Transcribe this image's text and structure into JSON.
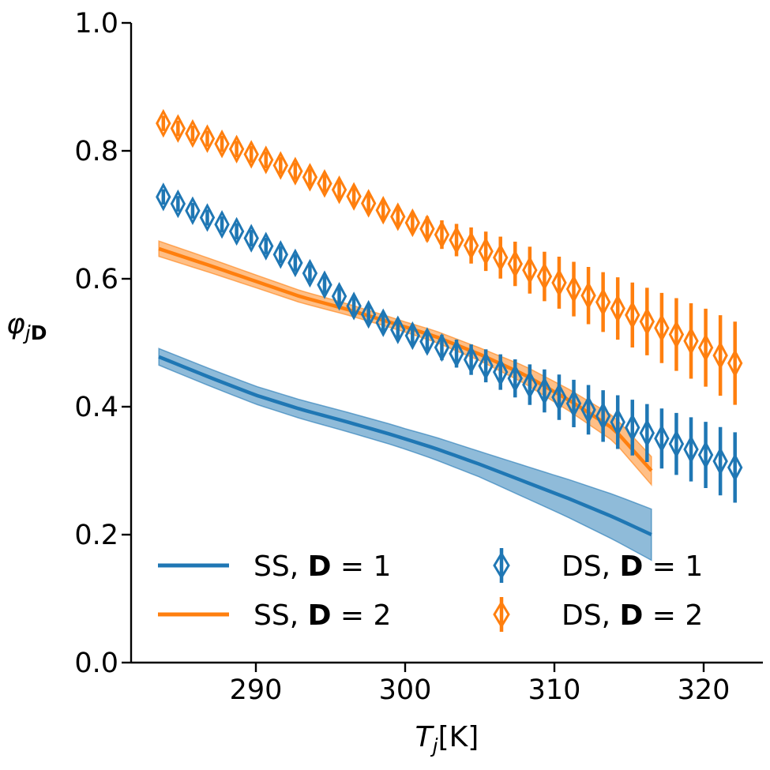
{
  "chart_data": {
    "type": "line",
    "xlabel": {
      "var": "T",
      "sub": "j",
      "unit": "[K]"
    },
    "ylabel": {
      "var": "φ",
      "sub_italic": "j",
      "sub_bold": "D"
    },
    "xlim": [
      281.9,
      324.4
    ],
    "ylim": [
      0.0,
      1.0
    ],
    "xticks": [
      290,
      300,
      310,
      320
    ],
    "xtick_labels": [
      "290",
      "300",
      "310",
      "320"
    ],
    "yticks": [
      0.0,
      0.2,
      0.4,
      0.6,
      0.8,
      1.0
    ],
    "ytick_labels": [
      "0.0",
      "0.2",
      "0.4",
      "0.6",
      "0.8",
      "1.0"
    ],
    "grid": false,
    "legend_position": "lower-left",
    "series": [
      {
        "name": "SS, D = 1",
        "kind": "line-band",
        "color": "#1f77b4",
        "points": [
          [
            283.5,
            0.478
          ],
          [
            287,
            0.445
          ],
          [
            290,
            0.418
          ],
          [
            293,
            0.396
          ],
          [
            296,
            0.377
          ],
          [
            299,
            0.357
          ],
          [
            302,
            0.335
          ],
          [
            305,
            0.31
          ],
          [
            308,
            0.283
          ],
          [
            311,
            0.256
          ],
          [
            314,
            0.227
          ],
          [
            316.5,
            0.2
          ]
        ],
        "band_half_width": [
          [
            283.5,
            0.013
          ],
          [
            290,
            0.014
          ],
          [
            300,
            0.016
          ],
          [
            305,
            0.02
          ],
          [
            310,
            0.028
          ],
          [
            316.5,
            0.04
          ]
        ]
      },
      {
        "name": "SS, D = 2",
        "kind": "line-band",
        "color": "#ff7f0e",
        "points": [
          [
            283.5,
            0.647
          ],
          [
            287,
            0.62
          ],
          [
            290,
            0.596
          ],
          [
            293,
            0.572
          ],
          [
            296,
            0.553
          ],
          [
            299,
            0.532
          ],
          [
            302,
            0.51
          ],
          [
            305,
            0.482
          ],
          [
            308,
            0.45
          ],
          [
            311,
            0.41
          ],
          [
            314,
            0.365
          ],
          [
            316.5,
            0.3
          ]
        ],
        "band_half_width": [
          [
            283.5,
            0.012
          ],
          [
            290,
            0.01
          ],
          [
            300,
            0.008
          ],
          [
            305,
            0.01
          ],
          [
            310,
            0.016
          ],
          [
            316.5,
            0.022
          ]
        ]
      },
      {
        "name": "DS, D = 1",
        "kind": "errorbar-diamond",
        "color": "#1f77b4",
        "x_range": [
          283.8,
          322.1
        ],
        "count": 40,
        "points": [
          [
            283.8,
            0.728
          ],
          [
            290,
            0.66
          ],
          [
            293,
            0.62
          ],
          [
            296,
            0.565
          ],
          [
            299,
            0.525
          ],
          [
            302,
            0.497
          ],
          [
            305,
            0.468
          ],
          [
            308,
            0.438
          ],
          [
            311,
            0.408
          ],
          [
            314,
            0.378
          ],
          [
            317,
            0.352
          ],
          [
            320,
            0.326
          ],
          [
            322.1,
            0.305
          ]
        ],
        "err": [
          [
            283.8,
            0.012
          ],
          [
            300,
            0.015
          ],
          [
            305,
            0.025
          ],
          [
            310,
            0.035
          ],
          [
            322.1,
            0.055
          ]
        ]
      },
      {
        "name": "DS, D = 2",
        "kind": "errorbar-diamond",
        "color": "#ff7f0e",
        "x_range": [
          283.8,
          322.1
        ],
        "count": 40,
        "points": [
          [
            283.8,
            0.843
          ],
          [
            287,
            0.817
          ],
          [
            290,
            0.792
          ],
          [
            293,
            0.765
          ],
          [
            296,
            0.735
          ],
          [
            299,
            0.702
          ],
          [
            302,
            0.673
          ],
          [
            305,
            0.647
          ],
          [
            308,
            0.617
          ],
          [
            311,
            0.587
          ],
          [
            314,
            0.556
          ],
          [
            317,
            0.525
          ],
          [
            320,
            0.494
          ],
          [
            322.1,
            0.468
          ]
        ],
        "err": [
          [
            283.8,
            0.012
          ],
          [
            300,
            0.015
          ],
          [
            305,
            0.03
          ],
          [
            310,
            0.04
          ],
          [
            322.1,
            0.065
          ]
        ]
      }
    ],
    "legend": [
      {
        "prefix": "SS, ",
        "bold": "D",
        "suffix": " = 1",
        "marker": "line",
        "color": "#1f77b4"
      },
      {
        "prefix": "SS, ",
        "bold": "D",
        "suffix": " = 2",
        "marker": "line",
        "color": "#ff7f0e"
      },
      {
        "prefix": "DS, ",
        "bold": "D",
        "suffix": " = 1",
        "marker": "diamond-errorbar",
        "color": "#1f77b4"
      },
      {
        "prefix": "DS, ",
        "bold": "D",
        "suffix": " = 2",
        "marker": "diamond-errorbar",
        "color": "#ff7f0e"
      }
    ]
  }
}
